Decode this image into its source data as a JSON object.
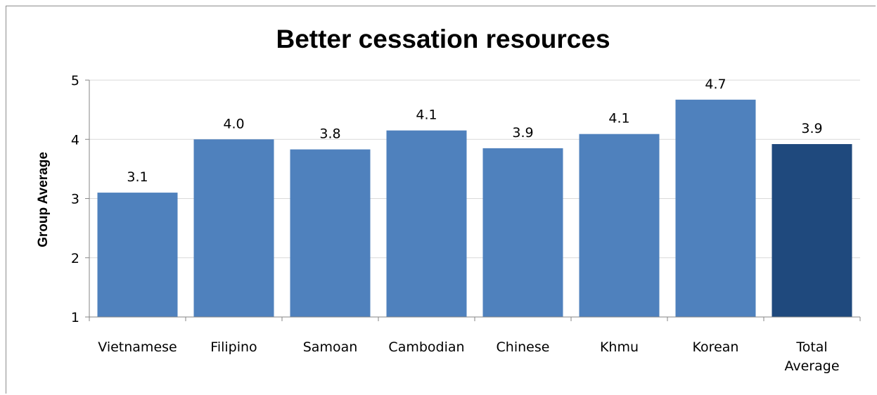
{
  "chart_data": {
    "type": "bar",
    "title": "Better cessation resources",
    "xlabel": "",
    "ylabel": "Group Average",
    "ylim": [
      1,
      5
    ],
    "yticks": [
      1,
      2,
      3,
      4,
      5
    ],
    "categories": [
      "Vietnamese",
      "Filipino",
      "Samoan",
      "Cambodian",
      "Chinese",
      "Khmu",
      "Korean",
      "Total Average"
    ],
    "category_lines": [
      [
        "Vietnamese"
      ],
      [
        "Filipino"
      ],
      [
        "Samoan"
      ],
      [
        "Cambodian"
      ],
      [
        "Chinese"
      ],
      [
        "Khmu"
      ],
      [
        "Korean"
      ],
      [
        "Total",
        "Average"
      ]
    ],
    "values": [
      3.1,
      4.0,
      3.83,
      4.15,
      3.85,
      4.09,
      4.67,
      3.92
    ],
    "data_labels": [
      "3.1",
      "4.0",
      "3.8",
      "4.1",
      "3.9",
      "4.1",
      "4.7",
      "3.9"
    ],
    "grid": true,
    "legend": "none",
    "colors": {
      "bar": "#4f81bd",
      "highlight_bar": "#1f497d",
      "grid": "#d9d9d9",
      "axis": "#868686"
    },
    "highlight_index": 7
  }
}
